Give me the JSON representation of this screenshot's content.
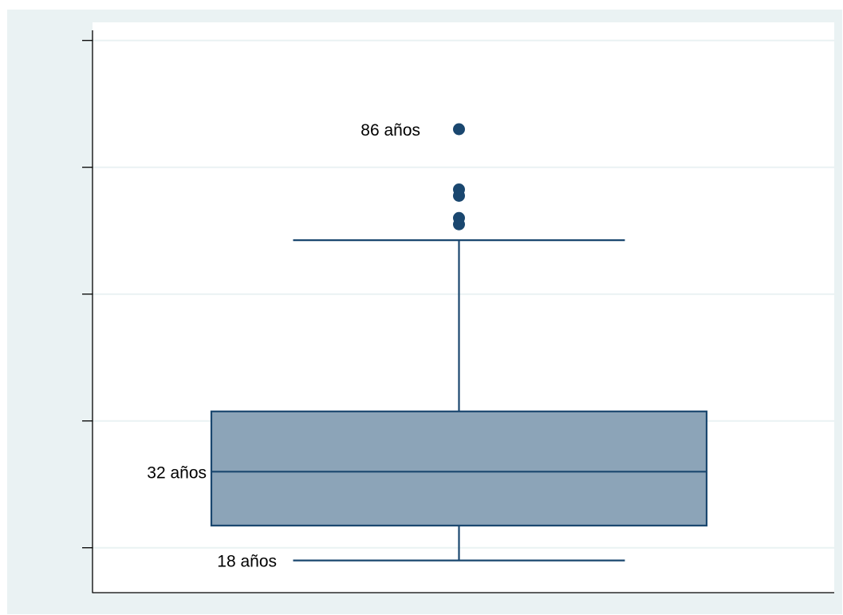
{
  "colors": {
    "frame_background": "#eaf2f3",
    "plot_background": "#ffffff",
    "gridline": "#eaf2f3",
    "box_fill": "#8ca4b8",
    "box_stroke": "#1a476f",
    "outlier_fill": "#1a476f",
    "axis": "#000000"
  },
  "chart_data": {
    "type": "box",
    "title": "",
    "xlabel": "",
    "ylabel": "",
    "ylim": [
      15,
      95
    ],
    "yticks": [
      20,
      40,
      60,
      80,
      100
    ],
    "ytick_labels_visible": false,
    "grid": true,
    "series": [
      {
        "min": 18,
        "q1": 23.5,
        "median": 32,
        "q3": 41.5,
        "whisker_high": 68.5,
        "outliers": [
          71,
          72,
          75.5,
          76.5,
          86
        ]
      }
    ],
    "annotations": [
      {
        "id": "max",
        "text": "86 años",
        "value": 86
      },
      {
        "id": "median",
        "text": "32 años",
        "value": 32
      },
      {
        "id": "min",
        "text": "18 años",
        "value": 18
      }
    ]
  }
}
